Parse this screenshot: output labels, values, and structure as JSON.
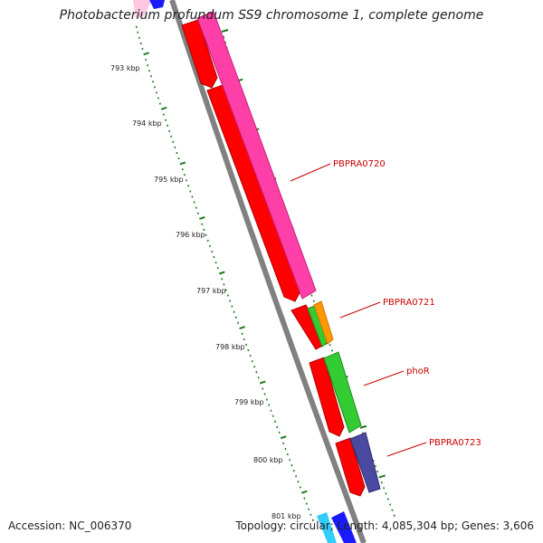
{
  "title": "Photobacterium profundum SS9 chromosome 1, complete genome",
  "accession": "Accession: NC_006370",
  "summary": "Topology: circular; Length: 4,085,304 bp; Genes: 3,606",
  "colors": {
    "backbone": "#808080",
    "tick": "#1f7a1f",
    "label_red": "#cc0000",
    "gene_red": "#ff0000",
    "gene_pink": "#ff3fa8",
    "gene_green": "#33cc33",
    "gene_orange": "#ff9900",
    "gene_navy": "#4a4aa0",
    "gene_blue": "#1a1aff",
    "gene_cyan": "#33ccff"
  },
  "ticks": [
    "793 kbp",
    "794 kbp",
    "795 kbp",
    "796 kbp",
    "797 kbp",
    "798 kbp",
    "799 kbp",
    "800 kbp",
    "801 kbp"
  ],
  "gene_labels": [
    "PBPRA0720",
    "PBPRA0721",
    "phoR",
    "PBPRA0723"
  ]
}
